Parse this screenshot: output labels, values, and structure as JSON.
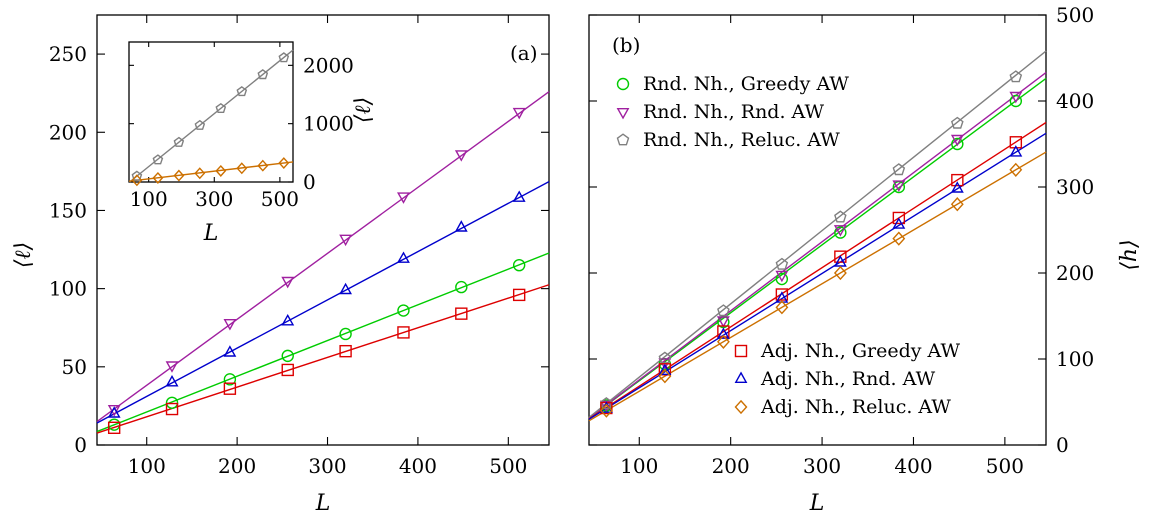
{
  "chart_data": [
    {
      "panel": "(a)",
      "type": "scatter",
      "xlabel": "L",
      "ylabel": "⟨ℓ⟩",
      "xlim": [
        45,
        545
      ],
      "ylim": [
        0,
        275
      ],
      "xticks": [
        100,
        200,
        300,
        400,
        500
      ],
      "yticks": [
        0,
        50,
        100,
        150,
        200,
        250
      ],
      "legend": "none",
      "grid": false,
      "series": [
        {
          "color": "#a020a0",
          "marker": "triangle-down",
          "x": [
            64,
            128,
            192,
            256,
            320,
            384,
            448,
            512
          ],
          "y": [
            23,
            51,
            78,
            105,
            132,
            159,
            186,
            213
          ],
          "fit": {
            "slope": 0.4219,
            "intercept": -4.0
          }
        },
        {
          "color": "#0000cc",
          "marker": "triangle-up",
          "x": [
            64,
            128,
            192,
            256,
            320,
            384,
            448,
            512
          ],
          "y": [
            20,
            40,
            59,
            79,
            99,
            119,
            139,
            158
          ],
          "fit": {
            "slope": 0.3087,
            "intercept": 0.2
          }
        },
        {
          "color": "#00cc00",
          "marker": "circle",
          "x": [
            64,
            128,
            192,
            256,
            320,
            384,
            448,
            512
          ],
          "y": [
            13,
            27,
            42,
            57,
            71,
            86,
            101,
            115
          ],
          "fit": {
            "slope": 0.2284,
            "intercept": -1.7
          }
        },
        {
          "color": "#dd0000",
          "marker": "square",
          "x": [
            64,
            128,
            192,
            256,
            320,
            384,
            448,
            512
          ],
          "y": [
            11,
            23,
            36,
            48,
            60,
            72,
            84,
            96
          ],
          "fit": {
            "slope": 0.1897,
            "intercept": -0.9
          }
        }
      ]
    },
    {
      "panel": "inset",
      "type": "scatter",
      "xlabel": "L",
      "ylabel": "⟨ℓ⟩",
      "xlim": [
        40,
        540
      ],
      "ylim": [
        0,
        2400
      ],
      "xticks": [
        100,
        300,
        500
      ],
      "yticks": [
        0,
        1000,
        2000
      ],
      "series": [
        {
          "color": "#808080",
          "marker": "pentagon",
          "x": [
            64,
            128,
            192,
            256,
            320,
            384,
            448,
            512
          ],
          "y": [
            100,
            380,
            680,
            970,
            1260,
            1550,
            1840,
            2130
          ],
          "fit": {
            "slope": 4.54,
            "intercept": -190
          }
        },
        {
          "color": "#cc7000",
          "marker": "diamond",
          "x": [
            64,
            128,
            192,
            256,
            320,
            384,
            448,
            512
          ],
          "y": [
            30,
            70,
            110,
            150,
            190,
            235,
            280,
            325
          ],
          "fit": {
            "slope": 0.66,
            "intercept": -12
          }
        }
      ]
    },
    {
      "panel": "(b)",
      "type": "scatter",
      "xlabel": "L",
      "ylabel": "⟨h⟩",
      "xlim": [
        45,
        545
      ],
      "ylim": [
        0,
        500
      ],
      "xticks": [
        100,
        200,
        300,
        400,
        500
      ],
      "yticks": [
        0,
        100,
        200,
        300,
        400,
        500
      ],
      "legend": "top-left and bottom-right",
      "grid": false,
      "series": [
        {
          "name": "Rnd. Nh., Greedy AW",
          "color": "#00cc00",
          "marker": "circle",
          "x": [
            64,
            128,
            192,
            256,
            320,
            384,
            448,
            512
          ],
          "y": [
            46,
            94,
            143,
            193,
            247,
            300,
            350,
            400
          ],
          "fit": {
            "slope": 0.79,
            "intercept": -4.3
          }
        },
        {
          "name": "Rnd. Nh., Rnd. AW",
          "color": "#a020a0",
          "marker": "triangle-down",
          "x": [
            64,
            128,
            192,
            256,
            320,
            384,
            448,
            512
          ],
          "y": [
            47,
            96,
            145,
            198,
            251,
            303,
            356,
            406
          ],
          "fit": {
            "slope": 0.803,
            "intercept": -4.6
          }
        },
        {
          "name": "Rnd. Nh., Reluc. AW",
          "color": "#808080",
          "marker": "pentagon",
          "x": [
            64,
            128,
            192,
            256,
            320,
            384,
            448,
            512
          ],
          "y": [
            48,
            101,
            156,
            210,
            265,
            320,
            374,
            428
          ],
          "fit": {
            "slope": 0.852,
            "intercept": -6.3
          }
        },
        {
          "name": "Adj. Nh., Greedy AW",
          "color": "#dd0000",
          "marker": "square",
          "x": [
            64,
            128,
            192,
            256,
            320,
            384,
            448,
            512
          ],
          "y": [
            43,
            88,
            132,
            175,
            219,
            264,
            308,
            352
          ],
          "fit": {
            "slope": 0.689,
            "intercept": -0.5
          }
        },
        {
          "name": "Adj. Nh., Rnd. AW",
          "color": "#0000cc",
          "marker": "triangle-up",
          "x": [
            64,
            128,
            192,
            256,
            320,
            384,
            448,
            512
          ],
          "y": [
            42,
            86,
            128,
            170,
            212,
            256,
            298,
            340
          ],
          "fit": {
            "slope": 0.665,
            "intercept": 0.0
          }
        },
        {
          "name": "Adj. Nh., Reluc. AW",
          "color": "#cc7000",
          "marker": "diamond",
          "x": [
            64,
            128,
            192,
            256,
            320,
            384,
            448,
            512
          ],
          "y": [
            40,
            80,
            120,
            160,
            200,
            240,
            280,
            320
          ],
          "fit": {
            "slope": 0.625,
            "intercept": 0.0
          }
        }
      ]
    }
  ]
}
